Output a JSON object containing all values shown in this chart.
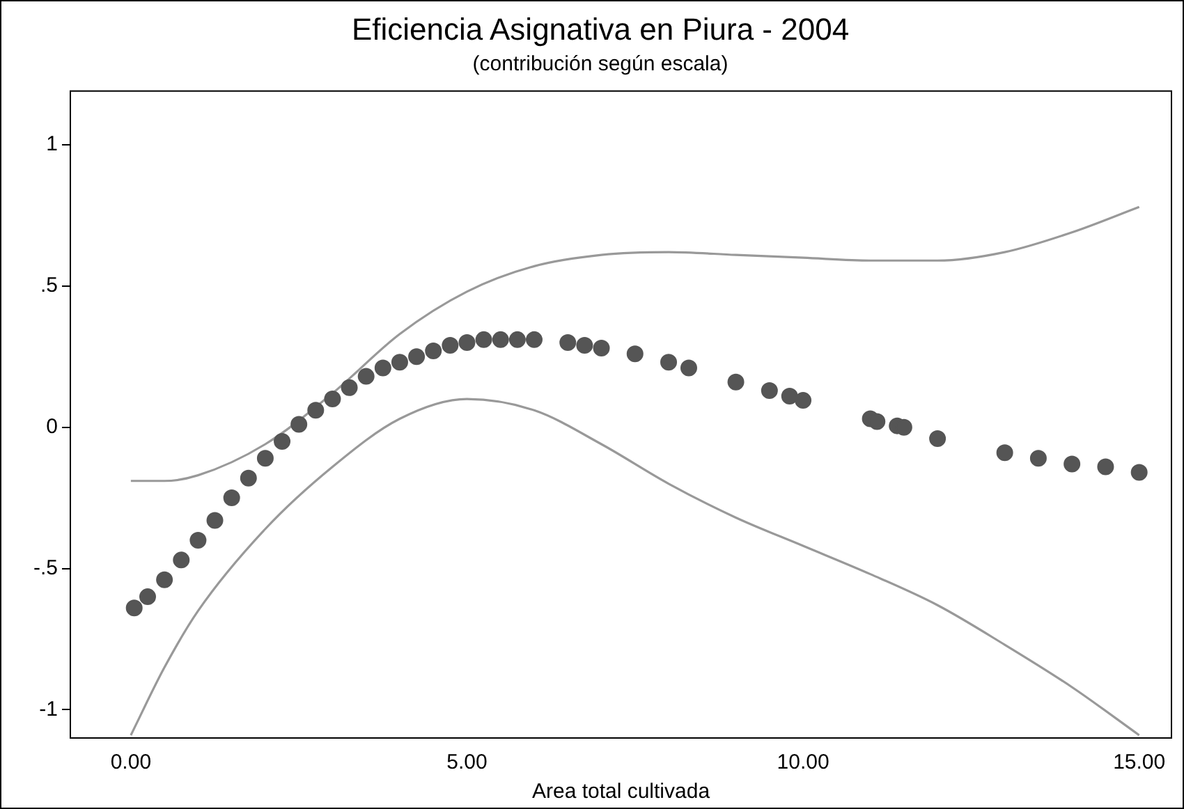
{
  "chart_data": {
    "type": "scatter",
    "title": "Eficiencia Asignativa en Piura - 2004",
    "subtitle": "(contribución según escala)",
    "xlabel": "Area total cultivada",
    "xlim": [
      -0.9,
      15.48
    ],
    "ylim": [
      -1.1,
      1.19
    ],
    "xticks": [
      {
        "value": 0,
        "label": "0.00"
      },
      {
        "value": 5,
        "label": "5.00"
      },
      {
        "value": 10,
        "label": "10.00"
      },
      {
        "value": 15,
        "label": "15.00"
      }
    ],
    "yticks": [
      {
        "value": -1,
        "label": "-1"
      },
      {
        "value": -0.5,
        "label": "-.5"
      },
      0,
      {
        "value": 0.5,
        "label": ".5"
      },
      1
    ],
    "grid": false,
    "legend": false,
    "marker": "circle",
    "series": [
      {
        "color": "#555555",
        "x": [
          0.05,
          0.25,
          0.5,
          0.75,
          1.0,
          1.25,
          1.5,
          1.75,
          2.0,
          2.25,
          2.5,
          2.75,
          3.0,
          3.25,
          3.5,
          3.75,
          4.0,
          4.25,
          4.5,
          4.75,
          5.0,
          5.25,
          5.5,
          5.75,
          6.0,
          6.5,
          6.75,
          7.0,
          7.5,
          8.0,
          8.3,
          9.0,
          9.5,
          9.8,
          10.0,
          11.0,
          11.1,
          11.4,
          11.5,
          12.0,
          13.0,
          13.5,
          14.0,
          14.5,
          15.0
        ],
        "values": [
          -0.64,
          -0.6,
          -0.54,
          -0.47,
          -0.4,
          -0.33,
          -0.25,
          -0.18,
          -0.11,
          -0.05,
          0.01,
          0.06,
          0.1,
          0.14,
          0.18,
          0.21,
          0.23,
          0.25,
          0.27,
          0.29,
          0.3,
          0.31,
          0.31,
          0.31,
          0.31,
          0.3,
          0.29,
          0.28,
          0.26,
          0.23,
          0.21,
          0.16,
          0.13,
          0.11,
          0.095,
          0.03,
          0.02,
          0.005,
          0.0,
          -0.04,
          -0.09,
          -0.11,
          -0.13,
          -0.14,
          -0.16
        ]
      },
      {
        "type": "line",
        "color": "#999999",
        "marker": "none",
        "x": [
          0,
          0.5,
          1,
          2,
          3,
          4,
          5,
          6,
          7,
          8,
          9,
          10,
          11,
          12,
          13,
          14,
          15
        ],
        "values": [
          -0.19,
          -0.19,
          -0.17,
          -0.06,
          0.12,
          0.33,
          0.48,
          0.57,
          0.61,
          0.62,
          0.61,
          0.6,
          0.59,
          0.59,
          0.62,
          0.69,
          0.78
        ]
      },
      {
        "type": "line",
        "color": "#999999",
        "marker": "none",
        "x": [
          0,
          0.5,
          1,
          2,
          3,
          4,
          5,
          6,
          7,
          8,
          9,
          10,
          11,
          12,
          13,
          14,
          15
        ],
        "values": [
          -1.09,
          -0.85,
          -0.65,
          -0.36,
          -0.14,
          0.03,
          0.1,
          0.06,
          -0.06,
          -0.2,
          -0.32,
          -0.42,
          -0.52,
          -0.63,
          -0.77,
          -0.92,
          -1.09
        ]
      }
    ]
  }
}
